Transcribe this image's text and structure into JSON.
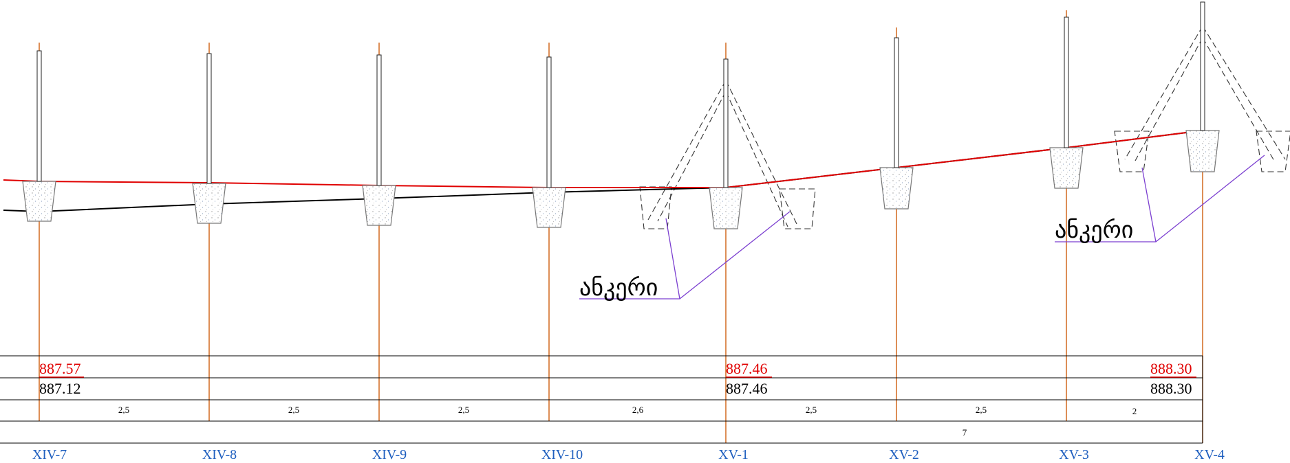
{
  "colors": {
    "pole_axis": "#d2691e",
    "design_line": "#e00000",
    "ground_line": "#000000",
    "anchor_leader": "#7b3fd0",
    "station_label": "#1f5fbf",
    "table_line": "#000000",
    "footing_stroke": "#777777",
    "dash": "#333333"
  },
  "anchors": [
    {
      "id": "anchor-1",
      "label": "ანკერი"
    },
    {
      "id": "anchor-2",
      "label": "ანკერი"
    }
  ],
  "table": {
    "red_marks": [
      "887.57",
      "887.46",
      "888.30"
    ],
    "black_marks": [
      "887.12",
      "887.46",
      "888.30"
    ],
    "spans": [
      "2,5",
      "2,5",
      "2,5",
      "2,6",
      "2,5",
      "2,5",
      "2"
    ],
    "total_span": "7"
  },
  "stations": [
    "XIV-7",
    "XIV-8",
    "XIV-9",
    "XIV-10",
    "XV-1",
    "XV-2",
    "XV-3",
    "XV-4"
  ]
}
